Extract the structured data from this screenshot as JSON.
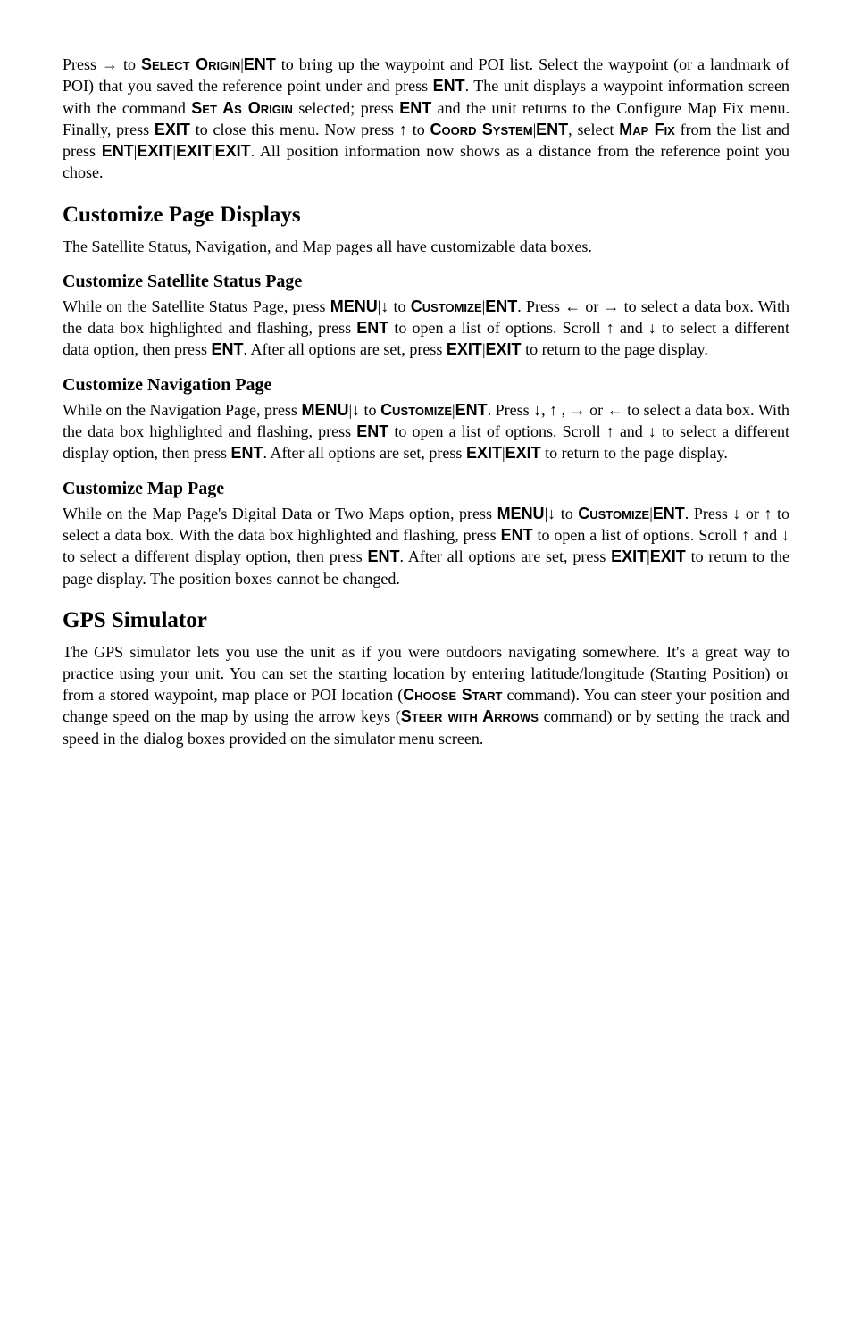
{
  "para1": {
    "t1": "Press → to ",
    "t2": "Select Origin",
    "t3": "|",
    "t4": "ENT",
    "t5": " to bring up the waypoint and POI list. Select the waypoint (or a landmark of POI) that you saved the reference point under and press ",
    "t6": "ENT",
    "t7": ". The unit displays a waypoint information screen with the command ",
    "t8": "Set As Origin",
    "t9": " selected; press ",
    "t10": "ENT",
    "t11": " and the unit returns to the Configure Map Fix menu. Finally, press ",
    "t12": "EXIT",
    "t13": " to close this menu. Now press ↑ to ",
    "t14": "Coord System",
    "t15": "|",
    "t16": "ENT",
    "t17": ", select ",
    "t18": "Map Fix",
    "t19": " from the list and press ",
    "t20": "ENT",
    "t21": "|",
    "t22": "EXIT",
    "t23": "|",
    "t24": "EXIT",
    "t25": "|",
    "t26": "EXIT",
    "t27": ". All position information now shows as a distance from the reference point you chose."
  },
  "h_customize": "Customize Page Displays",
  "para2": "The Satellite Status, Navigation, and Map pages all have customizable data boxes.",
  "h_sat": "Customize Satellite Status Page",
  "para3": {
    "t1": "While on the Satellite Status Page, press ",
    "t2": "MENU",
    "t3": "|↓ to ",
    "t4": "Customize",
    "t5": "|",
    "t6": "ENT",
    "t7": ". Press ← or → to select a data box. With the data box highlighted and flashing, press ",
    "t8": "ENT",
    "t9": " to open a list of options. Scroll ↑ and ↓ to select a different data option, then press ",
    "t10": "ENT",
    "t11": ". After all options are set, press ",
    "t12": "EXIT",
    "t13": "|",
    "t14": "EXIT",
    "t15": " to return to the page display."
  },
  "h_nav": "Customize Navigation Page",
  "para4": {
    "t1": "While on the Navigation Page, press ",
    "t2": "MENU",
    "t3": "|↓ to ",
    "t4": "Customize",
    "t5": "|",
    "t6": "ENT",
    "t7": ". Press ↓, ↑ , → or ←  to select a data box. With the data box highlighted and flashing, press ",
    "t8": "ENT",
    "t9": " to open a list of options. Scroll ↑ and ↓ to select a different display option, then press ",
    "t10": "ENT",
    "t11": ". After all options are set, press ",
    "t12": "EXIT",
    "t13": "|",
    "t14": "EXIT",
    "t15": " to return to the page display."
  },
  "h_map": "Customize Map Page",
  "para5": {
    "t1": "While on the Map Page's Digital Data or Two Maps option, press ",
    "t2": "MENU",
    "t3": "|↓ to ",
    "t4": "Customize",
    "t5": "|",
    "t6": "ENT",
    "t7": ". Press ↓ or ↑ to select a data box. With the data box highlighted and flashing, press ",
    "t8": "ENT",
    "t9": " to open a list of options. Scroll ↑ and ↓ to select a different display option, then press ",
    "t10": "ENT",
    "t11": ". After all options are set, press ",
    "t12": "EXIT",
    "t13": "|",
    "t14": "EXIT",
    "t15": " to return to the page display. The position boxes cannot be changed."
  },
  "h_gps": "GPS Simulator",
  "para6": {
    "t1": "The GPS simulator lets you use the unit as if you were outdoors navigating somewhere. It's a great way to practice using your unit. You can set the starting location by entering latitude/longitude (Starting Position) or from a stored waypoint, map place or POI location (",
    "t2": "Choose Start",
    "t3": " command). You can steer your position and change speed on the map by using the arrow keys (",
    "t4": "Steer with Arrows",
    "t5": " command) or by setting the track and speed in the dialog boxes provided on the simulator menu screen."
  }
}
